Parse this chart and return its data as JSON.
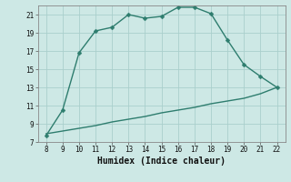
{
  "title": "",
  "xlabel": "Humidex (Indice chaleur)",
  "ylabel": "",
  "bg_color": "#cde8e5",
  "grid_color": "#aacfcc",
  "line_color": "#2e7d6e",
  "xlim": [
    7.5,
    22.5
  ],
  "ylim": [
    7,
    22
  ],
  "xticks": [
    8,
    9,
    10,
    11,
    12,
    13,
    14,
    15,
    16,
    17,
    18,
    19,
    20,
    21,
    22
  ],
  "yticks": [
    7,
    9,
    11,
    13,
    15,
    17,
    19,
    21
  ],
  "line1_x": [
    8,
    9,
    10,
    11,
    12,
    13,
    14,
    15,
    16,
    17,
    18,
    19,
    20,
    21,
    22
  ],
  "line1_y": [
    7.7,
    10.5,
    16.8,
    19.2,
    19.6,
    21.0,
    20.6,
    20.8,
    21.8,
    21.8,
    21.1,
    18.2,
    15.5,
    14.2,
    13.0
  ],
  "line2_x": [
    8,
    9,
    10,
    11,
    12,
    13,
    14,
    15,
    16,
    17,
    18,
    19,
    20,
    21,
    22
  ],
  "line2_y": [
    7.9,
    8.2,
    8.5,
    8.8,
    9.2,
    9.5,
    9.8,
    10.2,
    10.5,
    10.8,
    11.2,
    11.5,
    11.8,
    12.3,
    13.0
  ],
  "marker_size": 2.5,
  "linewidth": 1.0,
  "tick_fontsize": 5.5,
  "xlabel_fontsize": 7.0
}
